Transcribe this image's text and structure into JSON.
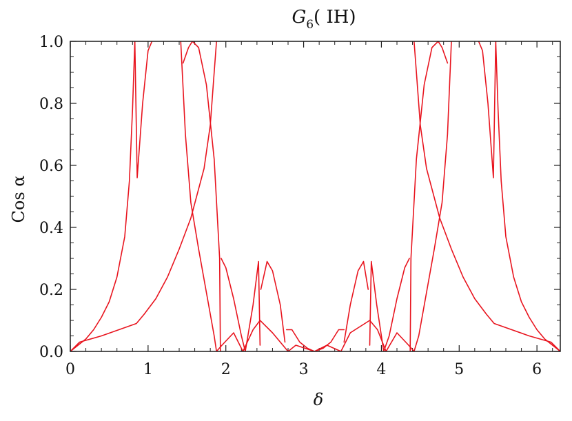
{
  "chart_data": {
    "type": "line",
    "title": "G",
    "title_subscript": "6",
    "title_suffix": "( IH)",
    "xlabel": "δ",
    "ylabel": "Cos α",
    "xlim": [
      0,
      6.3
    ],
    "ylim": [
      0,
      1.0
    ],
    "x_ticks": [
      0,
      1,
      2,
      3,
      4,
      5,
      6
    ],
    "x_tick_labels": [
      "0",
      "1",
      "2",
      "3",
      "4",
      "5",
      "6"
    ],
    "y_ticks": [
      0.0,
      0.2,
      0.4,
      0.6,
      0.8,
      1.0
    ],
    "y_tick_labels": [
      "0.0",
      "0.2",
      "0.4",
      "0.6",
      "0.8",
      "1.0"
    ],
    "grid": false,
    "line_color": "#e8141e",
    "series": [
      {
        "values": [
          [
            0.0,
            0.0
          ],
          [
            0.1,
            0.02
          ],
          [
            0.2,
            0.04
          ],
          [
            0.3,
            0.07
          ],
          [
            0.4,
            0.11
          ],
          [
            0.5,
            0.16
          ],
          [
            0.6,
            0.24
          ],
          [
            0.7,
            0.37
          ],
          [
            0.76,
            0.55
          ],
          [
            0.8,
            0.78
          ],
          [
            0.83,
            1.0
          ]
        ]
      },
      {
        "values": [
          [
            0.83,
            1.0
          ],
          [
            0.86,
            0.56
          ],
          [
            0.93,
            0.8
          ],
          [
            1.0,
            0.97
          ],
          [
            1.05,
            1.0
          ]
        ]
      },
      {
        "values": [
          [
            0.0,
            0.0
          ],
          [
            0.12,
            0.03
          ],
          [
            0.4,
            0.05
          ],
          [
            0.85,
            0.09
          ],
          [
            0.95,
            0.12
          ],
          [
            1.1,
            0.17
          ],
          [
            1.25,
            0.24
          ],
          [
            1.4,
            0.33
          ],
          [
            1.55,
            0.43
          ],
          [
            1.72,
            0.59
          ],
          [
            1.8,
            0.73
          ],
          [
            1.85,
            0.9
          ],
          [
            1.88,
            1.0
          ]
        ]
      },
      {
        "values": [
          [
            1.42,
            1.0
          ],
          [
            1.48,
            0.7
          ],
          [
            1.55,
            0.48
          ],
          [
            1.65,
            0.33
          ],
          [
            1.75,
            0.19
          ],
          [
            1.85,
            0.05
          ],
          [
            1.88,
            0.0
          ],
          [
            1.95,
            0.02
          ],
          [
            2.1,
            0.06
          ],
          [
            2.22,
            0.0
          ],
          [
            2.35,
            0.07
          ],
          [
            2.44,
            0.1
          ],
          [
            2.6,
            0.06
          ],
          [
            2.8,
            0.0
          ],
          [
            2.9,
            0.02
          ],
          [
            3.14,
            0.0
          ],
          [
            3.3,
            0.02
          ],
          [
            3.48,
            0.0
          ],
          [
            3.6,
            0.06
          ],
          [
            3.85,
            0.1
          ],
          [
            3.95,
            0.07
          ],
          [
            4.06,
            0.0
          ],
          [
            4.2,
            0.06
          ],
          [
            4.35,
            0.02
          ],
          [
            4.42,
            0.0
          ],
          [
            4.48,
            0.05
          ],
          [
            4.58,
            0.19
          ],
          [
            4.68,
            0.33
          ],
          [
            4.78,
            0.48
          ],
          [
            4.85,
            0.7
          ],
          [
            4.9,
            1.0
          ]
        ]
      },
      {
        "values": [
          [
            1.45,
            0.93
          ],
          [
            1.52,
            0.98
          ],
          [
            1.57,
            1.0
          ],
          [
            1.65,
            0.98
          ],
          [
            1.75,
            0.86
          ],
          [
            1.85,
            0.62
          ],
          [
            1.92,
            0.3
          ],
          [
            1.93,
            0.0
          ]
        ]
      },
      {
        "values": [
          [
            1.94,
            0.3
          ],
          [
            2.0,
            0.27
          ],
          [
            2.1,
            0.17
          ],
          [
            2.2,
            0.05
          ],
          [
            2.25,
            0.0
          ],
          [
            2.35,
            0.15
          ],
          [
            2.42,
            0.29
          ],
          [
            2.44,
            0.02
          ]
        ]
      },
      {
        "values": [
          [
            2.45,
            0.2
          ],
          [
            2.53,
            0.29
          ],
          [
            2.6,
            0.26
          ],
          [
            2.7,
            0.15
          ],
          [
            2.76,
            0.03
          ]
        ]
      },
      {
        "values": [
          [
            2.78,
            0.07
          ],
          [
            2.85,
            0.07
          ],
          [
            2.95,
            0.03
          ],
          [
            3.05,
            0.01
          ],
          [
            3.14,
            0.0
          ],
          [
            3.25,
            0.01
          ],
          [
            3.35,
            0.03
          ],
          [
            3.45,
            0.07
          ],
          [
            3.52,
            0.07
          ]
        ]
      },
      {
        "values": [
          [
            3.52,
            0.03
          ],
          [
            3.6,
            0.15
          ],
          [
            3.7,
            0.26
          ],
          [
            3.77,
            0.29
          ],
          [
            3.83,
            0.2
          ]
        ]
      },
      {
        "values": [
          [
            3.85,
            0.02
          ],
          [
            3.87,
            0.29
          ],
          [
            3.94,
            0.15
          ],
          [
            4.03,
            0.0
          ],
          [
            4.1,
            0.05
          ],
          [
            4.2,
            0.17
          ],
          [
            4.3,
            0.27
          ],
          [
            4.36,
            0.3
          ]
        ]
      },
      {
        "values": [
          [
            4.37,
            0.0
          ],
          [
            4.38,
            0.3
          ],
          [
            4.45,
            0.62
          ],
          [
            4.55,
            0.86
          ],
          [
            4.65,
            0.98
          ],
          [
            4.73,
            1.0
          ],
          [
            4.78,
            0.98
          ],
          [
            4.85,
            0.93
          ]
        ]
      },
      {
        "values": [
          [
            4.42,
            1.0
          ],
          [
            4.45,
            0.9
          ],
          [
            4.5,
            0.73
          ],
          [
            4.58,
            0.59
          ],
          [
            4.75,
            0.43
          ],
          [
            4.9,
            0.33
          ],
          [
            5.05,
            0.24
          ],
          [
            5.2,
            0.17
          ],
          [
            5.35,
            0.12
          ],
          [
            5.45,
            0.09
          ],
          [
            5.9,
            0.05
          ],
          [
            6.18,
            0.03
          ],
          [
            6.3,
            0.0
          ]
        ]
      },
      {
        "values": [
          [
            5.25,
            1.0
          ],
          [
            5.3,
            0.97
          ],
          [
            5.37,
            0.8
          ],
          [
            5.44,
            0.56
          ],
          [
            5.47,
            1.0
          ]
        ]
      },
      {
        "values": [
          [
            5.47,
            1.0
          ],
          [
            5.5,
            0.78
          ],
          [
            5.54,
            0.55
          ],
          [
            5.6,
            0.37
          ],
          [
            5.7,
            0.24
          ],
          [
            5.8,
            0.16
          ],
          [
            5.9,
            0.11
          ],
          [
            6.0,
            0.07
          ],
          [
            6.1,
            0.04
          ],
          [
            6.2,
            0.02
          ],
          [
            6.3,
            0.0
          ]
        ]
      }
    ]
  }
}
